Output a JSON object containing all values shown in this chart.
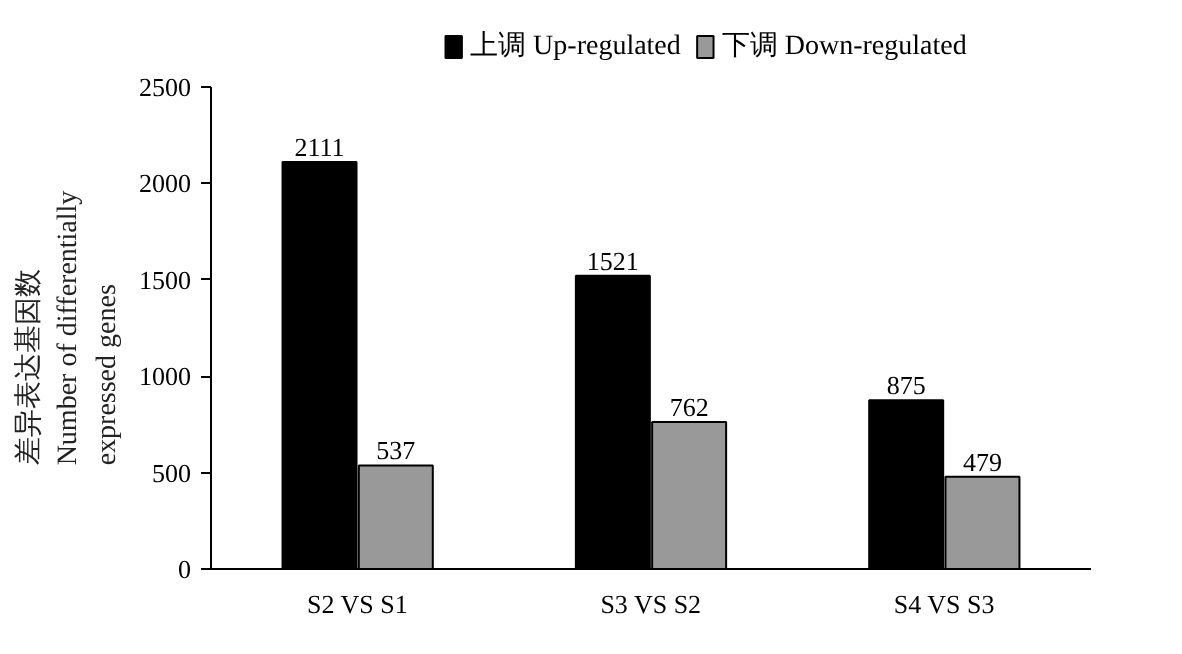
{
  "chart_data": {
    "type": "bar",
    "ylabel": "差异表达基因数\nNumber of differentially\nexpressed genes",
    "categories": [
      "S2 VS S1",
      "S3 VS S2",
      "S4 VS S3"
    ],
    "series": [
      {
        "name": "上调 Up-regulated",
        "color": "#000000",
        "values": [
          2111,
          1521,
          875
        ]
      },
      {
        "name": "下调 Down-regulated",
        "color": "#999999",
        "values": [
          537,
          762,
          479
        ]
      }
    ],
    "ylim": [
      0,
      2500
    ],
    "yticks": [
      0,
      500,
      1000,
      1500,
      2000,
      2500
    ],
    "grid": false,
    "legend": "top",
    "data_labels": true
  }
}
